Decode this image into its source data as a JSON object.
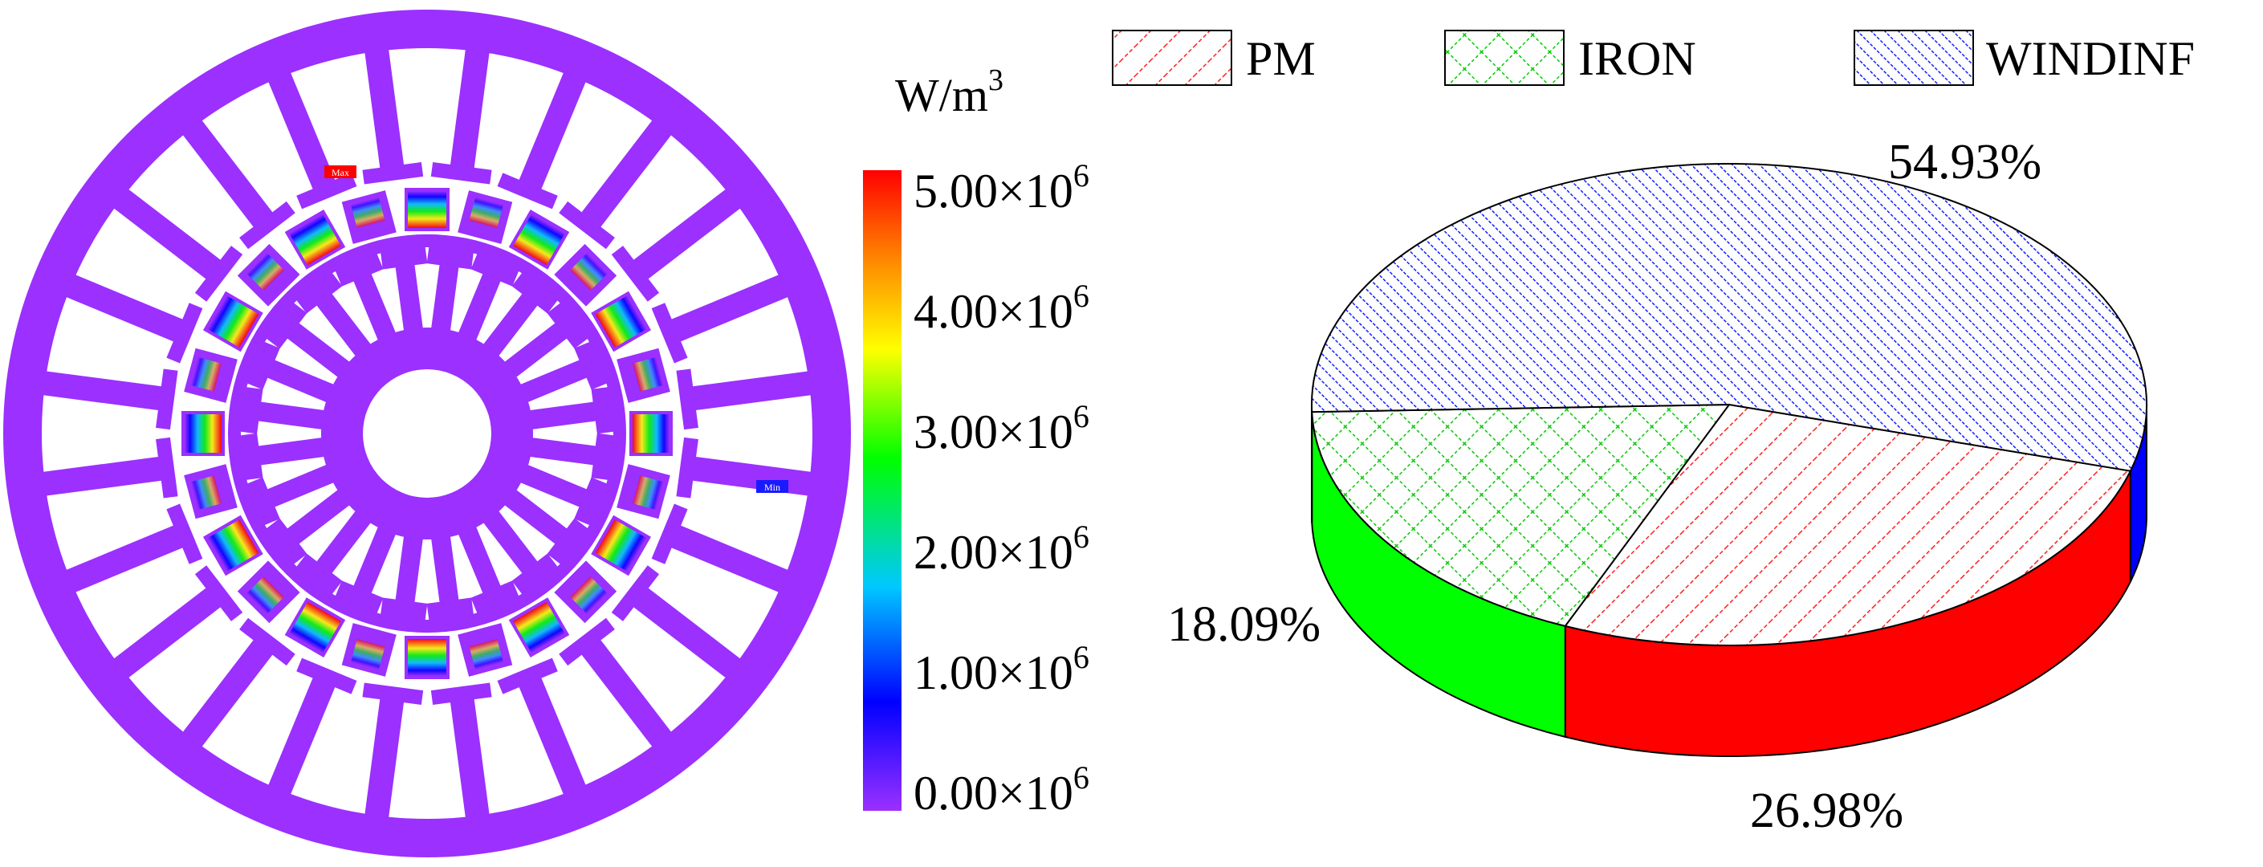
{
  "colorbar": {
    "unit": "W/m",
    "unit_sup": "3",
    "ticks": [
      {
        "label": "5.00×10",
        "sup": "6",
        "value": 5.0
      },
      {
        "label": "4.00×10",
        "sup": "6",
        "value": 4.0
      },
      {
        "label": "3.00×10",
        "sup": "6",
        "value": 3.0
      },
      {
        "label": "2.00×10",
        "sup": "6",
        "value": 2.0
      },
      {
        "label": "1.00×10",
        "sup": "6",
        "value": 1.0
      },
      {
        "label": "0.00×10",
        "sup": "6",
        "value": 0.0
      }
    ],
    "colors": [
      "#9b30ff",
      "#0000ff",
      "#00c8ff",
      "#00ff00",
      "#ffff00",
      "#ff8800",
      "#ff0000"
    ]
  },
  "motor": {
    "max_label": "Max",
    "min_label": "Min",
    "base_color": "#9b30ff"
  },
  "chart_data": {
    "type": "pie",
    "style": "3d",
    "legend_position": "top",
    "series": [
      {
        "name": "PM",
        "value": 26.98,
        "label": "26.98%",
        "color": "#ff0000",
        "pattern": "diagonal"
      },
      {
        "name": "IRON",
        "value": 18.09,
        "label": "18.09%",
        "color": "#00ff00",
        "pattern": "crosshatch"
      },
      {
        "name": "WINDINF",
        "value": 54.93,
        "label": "54.93%",
        "color": "#0000ff",
        "pattern": "diagonal-dense"
      }
    ]
  }
}
